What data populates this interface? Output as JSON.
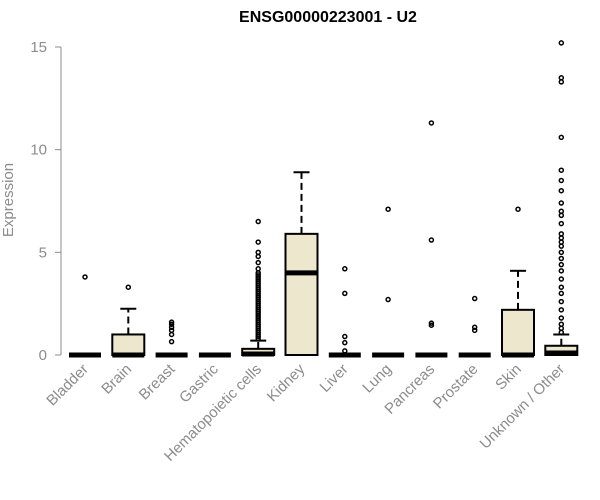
{
  "chart_data": {
    "type": "boxplot",
    "title": "ENSG00000223001 - U2",
    "xlabel": "",
    "ylabel": "Expression",
    "ylim": [
      0,
      15.5
    ],
    "yticks": [
      0,
      5,
      10,
      15
    ],
    "box_fill": "#ede7ce",
    "box_stroke": "#000000",
    "axis_color": "#8c8c8c",
    "categories": [
      "Bladder",
      "Brain",
      "Breast",
      "Gastric",
      "Hematopoietic cells",
      "Kidney",
      "Liver",
      "Lung",
      "Pancreas",
      "Prostate",
      "Skin",
      "Unknown / Other"
    ],
    "boxes": [
      {
        "category": "Bladder",
        "q1": 0,
        "median": 0,
        "q3": 0,
        "whisker_low": 0,
        "whisker_high": 0,
        "outliers": [
          3.8
        ]
      },
      {
        "category": "Brain",
        "q1": 0,
        "median": 0,
        "q3": 1.0,
        "whisker_low": 0,
        "whisker_high": 2.25,
        "outliers": [
          3.3
        ]
      },
      {
        "category": "Breast",
        "q1": 0,
        "median": 0,
        "q3": 0,
        "whisker_low": 0,
        "whisker_high": 0,
        "outliers": [
          0.65,
          1.0,
          1.2,
          1.35,
          1.5,
          1.6
        ]
      },
      {
        "category": "Gastric",
        "q1": 0,
        "median": 0,
        "q3": 0,
        "whisker_low": 0,
        "whisker_high": 0,
        "outliers": []
      },
      {
        "category": "Hematopoietic cells",
        "q1": 0,
        "median": 0.05,
        "q3": 0.3,
        "whisker_low": 0,
        "whisker_high": 0.7,
        "outliers": [
          0.8,
          0.9,
          1.0,
          1.1,
          1.2,
          1.3,
          1.4,
          1.5,
          1.6,
          1.7,
          1.8,
          1.9,
          2.0,
          2.1,
          2.2,
          2.3,
          2.4,
          2.5,
          2.6,
          2.7,
          2.8,
          2.9,
          3.0,
          3.1,
          3.2,
          3.3,
          3.4,
          3.5,
          3.6,
          3.7,
          3.8,
          3.9,
          4.0,
          4.2,
          4.5,
          4.8,
          5.0,
          5.5,
          6.5
        ]
      },
      {
        "category": "Kidney",
        "q1": 0,
        "median": 4.0,
        "q3": 5.9,
        "whisker_low": 0,
        "whisker_high": 8.9,
        "outliers": []
      },
      {
        "category": "Liver",
        "q1": 0,
        "median": 0,
        "q3": 0,
        "whisker_low": 0,
        "whisker_high": 0,
        "outliers": [
          0.2,
          0.6,
          0.9,
          3.0,
          4.2
        ]
      },
      {
        "category": "Lung",
        "q1": 0,
        "median": 0,
        "q3": 0,
        "whisker_low": 0,
        "whisker_high": 0,
        "outliers": [
          2.7,
          7.1
        ]
      },
      {
        "category": "Pancreas",
        "q1": 0,
        "median": 0,
        "q3": 0,
        "whisker_low": 0,
        "whisker_high": 0,
        "outliers": [
          1.45,
          1.55,
          5.6,
          11.3
        ]
      },
      {
        "category": "Prostate",
        "q1": 0,
        "median": 0,
        "q3": 0,
        "whisker_low": 0,
        "whisker_high": 0,
        "outliers": [
          1.2,
          1.35,
          2.75
        ]
      },
      {
        "category": "Skin",
        "q1": 0,
        "median": 0,
        "q3": 2.2,
        "whisker_low": 0,
        "whisker_high": 4.1,
        "outliers": [
          7.1
        ]
      },
      {
        "category": "Unknown / Other",
        "q1": 0,
        "median": 0.1,
        "q3": 0.45,
        "whisker_low": 0,
        "whisker_high": 1.0,
        "outliers": [
          1.1,
          1.3,
          1.5,
          1.8,
          2.2,
          2.6,
          3.0,
          3.3,
          3.7,
          4.1,
          4.4,
          4.7,
          5.0,
          5.3,
          5.5,
          5.7,
          5.9,
          6.4,
          6.8,
          7.0,
          7.4,
          8.0,
          8.5,
          9.0,
          10.6,
          13.3,
          13.5,
          15.2
        ]
      }
    ]
  }
}
